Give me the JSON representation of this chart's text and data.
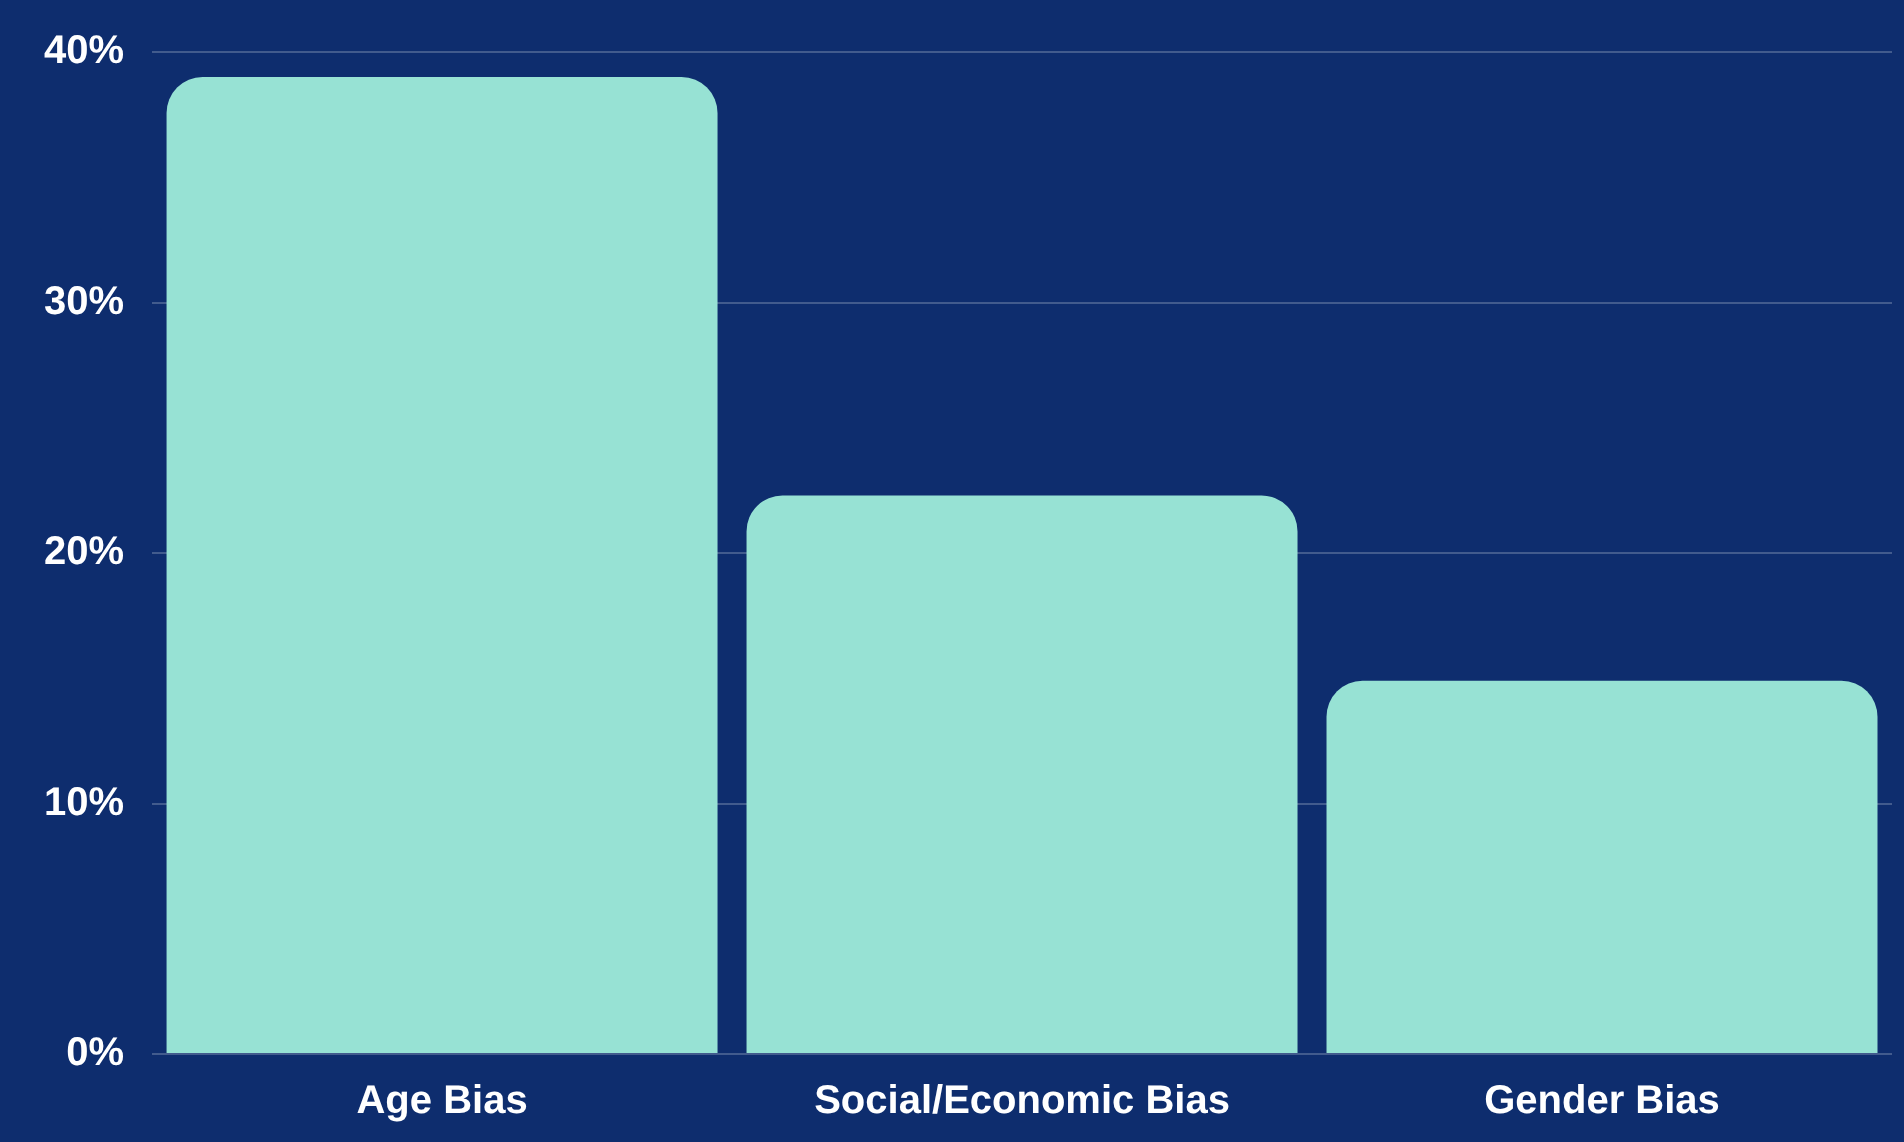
{
  "chart_data": {
    "type": "bar",
    "categories": [
      "Age Bias",
      "Social/Economic Bias",
      "Gender Bias"
    ],
    "values": [
      39,
      22.3,
      14.9
    ],
    "color": "#97e2d4",
    "ylim": [
      0,
      40
    ],
    "yticks": [
      {
        "value": 0,
        "label": "0%"
      },
      {
        "value": 10,
        "label": "10%"
      },
      {
        "value": 20,
        "label": "20%"
      },
      {
        "value": 30,
        "label": "30%"
      },
      {
        "value": 40,
        "label": "40%"
      }
    ],
    "grid": "y",
    "legend": false
  }
}
